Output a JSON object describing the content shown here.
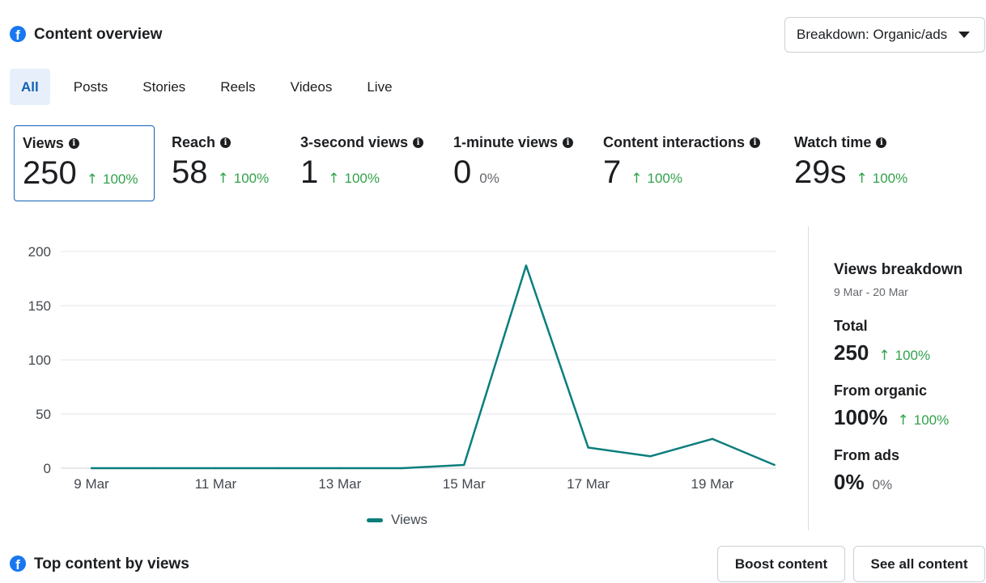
{
  "header": {
    "title": "Content overview",
    "breakdown_label": "Breakdown: Organic/ads"
  },
  "tabs": [
    {
      "label": "All"
    },
    {
      "label": "Posts"
    },
    {
      "label": "Stories"
    },
    {
      "label": "Reels"
    },
    {
      "label": "Videos"
    },
    {
      "label": "Live"
    }
  ],
  "metrics": [
    {
      "label": "Views",
      "value": "250",
      "change": "100%"
    },
    {
      "label": "Reach",
      "value": "58",
      "change": "100%"
    },
    {
      "label": "3-second views",
      "value": "1",
      "change": "100%"
    },
    {
      "label": "1-minute views",
      "value": "0",
      "change": "0%"
    },
    {
      "label": "Content interactions",
      "value": "7",
      "change": "100%"
    },
    {
      "label": "Watch time",
      "value": "29s",
      "change": "100%"
    }
  ],
  "chart_data": {
    "type": "line",
    "title": "",
    "x": [
      "9 Mar",
      "10 Mar",
      "11 Mar",
      "12 Mar",
      "13 Mar",
      "14 Mar",
      "15 Mar",
      "16 Mar",
      "17 Mar",
      "18 Mar",
      "19 Mar",
      "20 Mar"
    ],
    "tick_labels": [
      "9 Mar",
      "11 Mar",
      "13 Mar",
      "15 Mar",
      "17 Mar",
      "19 Mar"
    ],
    "series": [
      {
        "name": "Views",
        "values": [
          0,
          0,
          0,
          0,
          0,
          0,
          3,
          187,
          19,
          11,
          27,
          3
        ]
      }
    ],
    "y_ticks": [
      0,
      50,
      100,
      150,
      200
    ],
    "ylim": [
      0,
      200
    ],
    "grid": true,
    "legend": "bottom",
    "color": "#0a7e7c"
  },
  "breakdown": {
    "title": "Views breakdown",
    "range": "9 Mar - 20 Mar",
    "total_label": "Total",
    "total_value": "250",
    "total_change": "100%",
    "organic_label": "From organic",
    "organic_value": "100%",
    "organic_change": "100%",
    "ads_label": "From ads",
    "ads_value": "0%",
    "ads_change": "0%"
  },
  "top_content": {
    "title": "Top content by views",
    "boost_label": "Boost content",
    "see_all_label": "See all content"
  },
  "icons": {
    "brand": "facebook-icon",
    "info": "info-icon",
    "up": "arrow-up-icon",
    "caret": "caret-down-icon"
  },
  "colors": {
    "accent": "#1461b8",
    "positive": "#31a24c",
    "series": "#0a7e7c"
  }
}
